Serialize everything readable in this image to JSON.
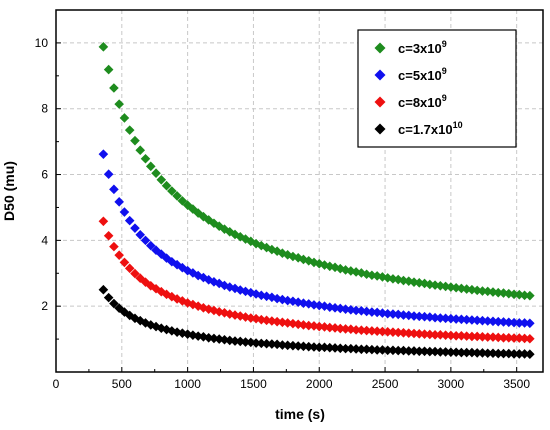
{
  "chart_data": {
    "type": "scatter",
    "title": "",
    "xlabel": "time (s)",
    "ylabel": "D50 (mu)",
    "xlim": [
      0,
      3700
    ],
    "ylim": [
      0,
      11
    ],
    "x_ticks": [
      "0",
      "500",
      "1000",
      "1500",
      "2000",
      "2500",
      "3000",
      "3500"
    ],
    "y_ticks": [
      "2",
      "4",
      "6",
      "8",
      "10"
    ],
    "grid": true,
    "legend_position": "top-right",
    "marker": "diamond",
    "x": [
      360,
      400,
      440,
      480,
      520,
      560,
      600,
      640,
      680,
      720,
      760,
      800,
      840,
      880,
      920,
      960,
      1000,
      1040,
      1080,
      1120,
      1160,
      1200,
      1240,
      1280,
      1320,
      1360,
      1400,
      1440,
      1480,
      1520,
      1560,
      1600,
      1640,
      1680,
      1720,
      1760,
      1800,
      1840,
      1880,
      1920,
      1960,
      2000,
      2040,
      2080,
      2120,
      2160,
      2200,
      2240,
      2280,
      2320,
      2360,
      2400,
      2440,
      2480,
      2520,
      2560,
      2600,
      2640,
      2680,
      2720,
      2760,
      2800,
      2840,
      2880,
      2920,
      2960,
      3000,
      3040,
      3080,
      3120,
      3160,
      3200,
      3240,
      3280,
      3320,
      3360,
      3400,
      3440,
      3480,
      3520,
      3560,
      3600
    ],
    "series": [
      {
        "name": "c=3x10^9",
        "label_base": "c=3x10",
        "label_exp": "9",
        "color": "#1e8c1e",
        "values": [
          9.88,
          9.19,
          8.63,
          8.14,
          7.72,
          7.35,
          7.03,
          6.74,
          6.48,
          6.25,
          6.04,
          5.84,
          5.66,
          5.5,
          5.35,
          5.2,
          5.07,
          4.95,
          4.83,
          4.72,
          4.62,
          4.52,
          4.43,
          4.34,
          4.26,
          4.18,
          4.11,
          4.04,
          3.97,
          3.9,
          3.84,
          3.78,
          3.72,
          3.67,
          3.61,
          3.56,
          3.51,
          3.47,
          3.42,
          3.38,
          3.33,
          3.29,
          3.25,
          3.21,
          3.18,
          3.14,
          3.1,
          3.07,
          3.04,
          3.01,
          2.97,
          2.94,
          2.92,
          2.89,
          2.86,
          2.83,
          2.81,
          2.78,
          2.76,
          2.73,
          2.71,
          2.69,
          2.66,
          2.64,
          2.62,
          2.6,
          2.58,
          2.56,
          2.54,
          2.52,
          2.5,
          2.48,
          2.46,
          2.45,
          2.43,
          2.41,
          2.4,
          2.38,
          2.36,
          2.35,
          2.33,
          2.32
        ]
      },
      {
        "name": "c=5x10^9",
        "label_base": "c=5x10",
        "label_exp": "9",
        "color": "#1010ee",
        "values": [
          6.62,
          6.01,
          5.55,
          5.17,
          4.86,
          4.6,
          4.37,
          4.17,
          4.0,
          3.84,
          3.7,
          3.58,
          3.46,
          3.35,
          3.26,
          3.17,
          3.08,
          3.01,
          2.93,
          2.87,
          2.8,
          2.74,
          2.69,
          2.63,
          2.58,
          2.54,
          2.49,
          2.45,
          2.41,
          2.37,
          2.33,
          2.3,
          2.27,
          2.23,
          2.2,
          2.17,
          2.15,
          2.12,
          2.09,
          2.07,
          2.04,
          2.02,
          2.0,
          1.97,
          1.95,
          1.93,
          1.91,
          1.89,
          1.87,
          1.86,
          1.84,
          1.82,
          1.81,
          1.79,
          1.77,
          1.76,
          1.75,
          1.73,
          1.72,
          1.7,
          1.69,
          1.68,
          1.67,
          1.65,
          1.64,
          1.63,
          1.62,
          1.61,
          1.6,
          1.59,
          1.58,
          1.57,
          1.56,
          1.55,
          1.54,
          1.53,
          1.52,
          1.51,
          1.5,
          1.49,
          1.49,
          1.48
        ]
      },
      {
        "name": "c=8x10^9",
        "label_base": "c=8x10",
        "label_exp": "9",
        "color": "#ee1010",
        "values": [
          4.58,
          4.14,
          3.81,
          3.55,
          3.33,
          3.15,
          2.99,
          2.85,
          2.73,
          2.62,
          2.53,
          2.44,
          2.36,
          2.29,
          2.22,
          2.16,
          2.1,
          2.05,
          2.0,
          1.95,
          1.91,
          1.87,
          1.83,
          1.8,
          1.76,
          1.73,
          1.7,
          1.67,
          1.64,
          1.62,
          1.59,
          1.57,
          1.55,
          1.53,
          1.51,
          1.49,
          1.47,
          1.45,
          1.43,
          1.41,
          1.4,
          1.38,
          1.37,
          1.35,
          1.34,
          1.32,
          1.31,
          1.3,
          1.28,
          1.27,
          1.26,
          1.25,
          1.24,
          1.23,
          1.22,
          1.21,
          1.2,
          1.19,
          1.18,
          1.17,
          1.16,
          1.15,
          1.14,
          1.13,
          1.13,
          1.12,
          1.11,
          1.1,
          1.1,
          1.09,
          1.08,
          1.08,
          1.07,
          1.06,
          1.06,
          1.05,
          1.04,
          1.04,
          1.03,
          1.03,
          1.02,
          1.01
        ]
      },
      {
        "name": "c=1.7x10^10",
        "label_base": "c=1.7x10",
        "label_exp": "10",
        "color": "#000000",
        "values": [
          2.5,
          2.26,
          2.08,
          1.94,
          1.82,
          1.72,
          1.63,
          1.56,
          1.49,
          1.43,
          1.38,
          1.33,
          1.29,
          1.25,
          1.21,
          1.18,
          1.15,
          1.12,
          1.09,
          1.07,
          1.04,
          1.02,
          1.0,
          0.98,
          0.96,
          0.94,
          0.93,
          0.91,
          0.9,
          0.88,
          0.87,
          0.86,
          0.85,
          0.84,
          0.82,
          0.81,
          0.8,
          0.79,
          0.78,
          0.77,
          0.76,
          0.75,
          0.75,
          0.74,
          0.73,
          0.72,
          0.71,
          0.71,
          0.7,
          0.69,
          0.69,
          0.68,
          0.67,
          0.67,
          0.66,
          0.66,
          0.65,
          0.65,
          0.64,
          0.64,
          0.63,
          0.63,
          0.62,
          0.62,
          0.61,
          0.61,
          0.6,
          0.6,
          0.59,
          0.59,
          0.59,
          0.58,
          0.58,
          0.57,
          0.57,
          0.56,
          0.56,
          0.56,
          0.55,
          0.55,
          0.55,
          0.54
        ]
      }
    ]
  }
}
